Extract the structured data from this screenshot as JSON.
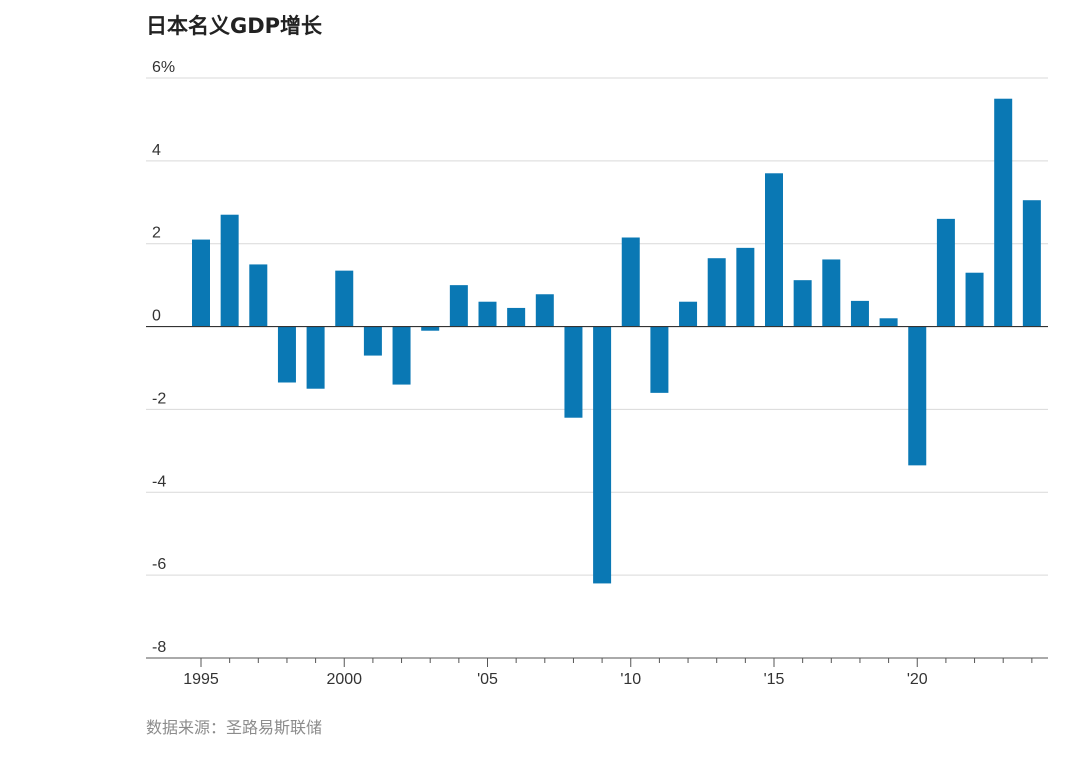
{
  "chart_data": {
    "type": "bar",
    "title": "日本名义GDP增长",
    "source": "数据来源：圣路易斯联储",
    "color": "#0a78b4",
    "ylim": [
      -8,
      6
    ],
    "yticks": [
      6,
      4,
      2,
      0,
      -2,
      -4,
      -6,
      -8
    ],
    "ytick_labels": [
      "6%",
      "4",
      "2",
      "0",
      "-2",
      "-4",
      "-6",
      "-8"
    ],
    "grid": true,
    "xlabel": "",
    "ylabel": "",
    "categories": [
      1995,
      1996,
      1997,
      1998,
      1999,
      2000,
      2001,
      2002,
      2003,
      2004,
      2005,
      2006,
      2007,
      2008,
      2009,
      2010,
      2011,
      2012,
      2013,
      2014,
      2015,
      2016,
      2017,
      2018,
      2019,
      2020,
      2021,
      2022,
      2023,
      2024
    ],
    "values": [
      2.1,
      2.7,
      1.5,
      -1.35,
      -1.5,
      1.35,
      -0.7,
      -1.4,
      -0.1,
      1.0,
      0.6,
      0.45,
      0.78,
      -2.2,
      -6.2,
      2.15,
      -1.6,
      0.6,
      1.65,
      1.9,
      3.7,
      1.12,
      1.62,
      0.62,
      0.2,
      -3.35,
      2.6,
      1.3,
      5.5,
      3.05
    ],
    "xtick_years": [
      1995,
      2000,
      2005,
      2010,
      2015,
      2020
    ],
    "xtick_labels": [
      "1995",
      "2000",
      "'05",
      "'10",
      "'15",
      "'20"
    ]
  }
}
